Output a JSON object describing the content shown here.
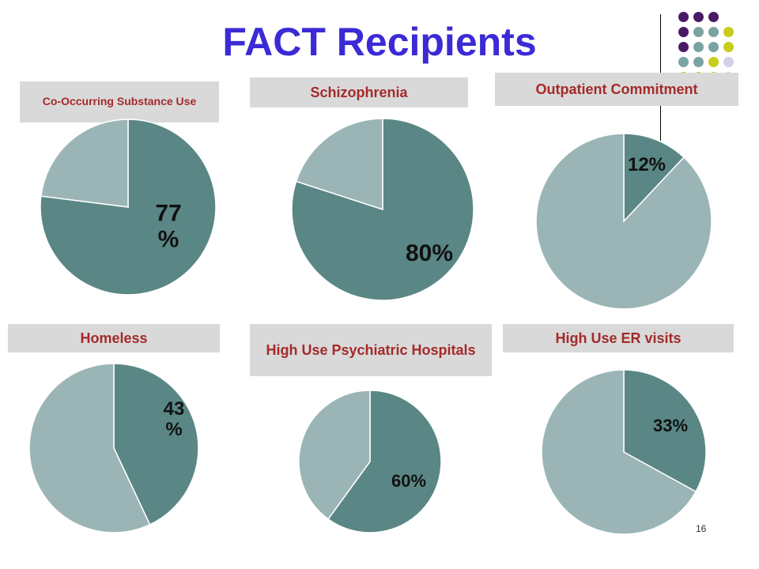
{
  "slide": {
    "title": "FACT Recipients",
    "page_number": "16",
    "colors": {
      "title": "#3b2ad6",
      "label_text": "#a52a2a",
      "label_bg": "#d9d9d9",
      "dark_slice": "#5a8785",
      "light_slice": "#9bb5b6"
    },
    "decoration": {
      "dot_colors": [
        "#4a1a66",
        "#7aa3a3",
        "#c8cc1a",
        "#d0d0e8"
      ]
    }
  },
  "chart_data": [
    {
      "type": "pie",
      "title": "Co-Occurring Substance Use",
      "values": [
        77,
        23
      ],
      "labels": [
        "77\n%",
        ""
      ]
    },
    {
      "type": "pie",
      "title": "Schizophrenia",
      "values": [
        80,
        20
      ],
      "labels": [
        "80%",
        ""
      ]
    },
    {
      "type": "pie",
      "title": "Outpatient Commitment",
      "values": [
        12,
        88
      ],
      "labels": [
        "12%",
        ""
      ]
    },
    {
      "type": "pie",
      "title": "Homeless",
      "values": [
        43,
        57
      ],
      "labels": [
        "43\n%",
        ""
      ]
    },
    {
      "type": "pie",
      "title": "High Use Psychiatric Hospitals",
      "values": [
        60,
        40
      ],
      "labels": [
        "60%",
        ""
      ]
    },
    {
      "type": "pie",
      "title": "High Use ER visits",
      "values": [
        33,
        67
      ],
      "labels": [
        "33%",
        ""
      ]
    }
  ]
}
